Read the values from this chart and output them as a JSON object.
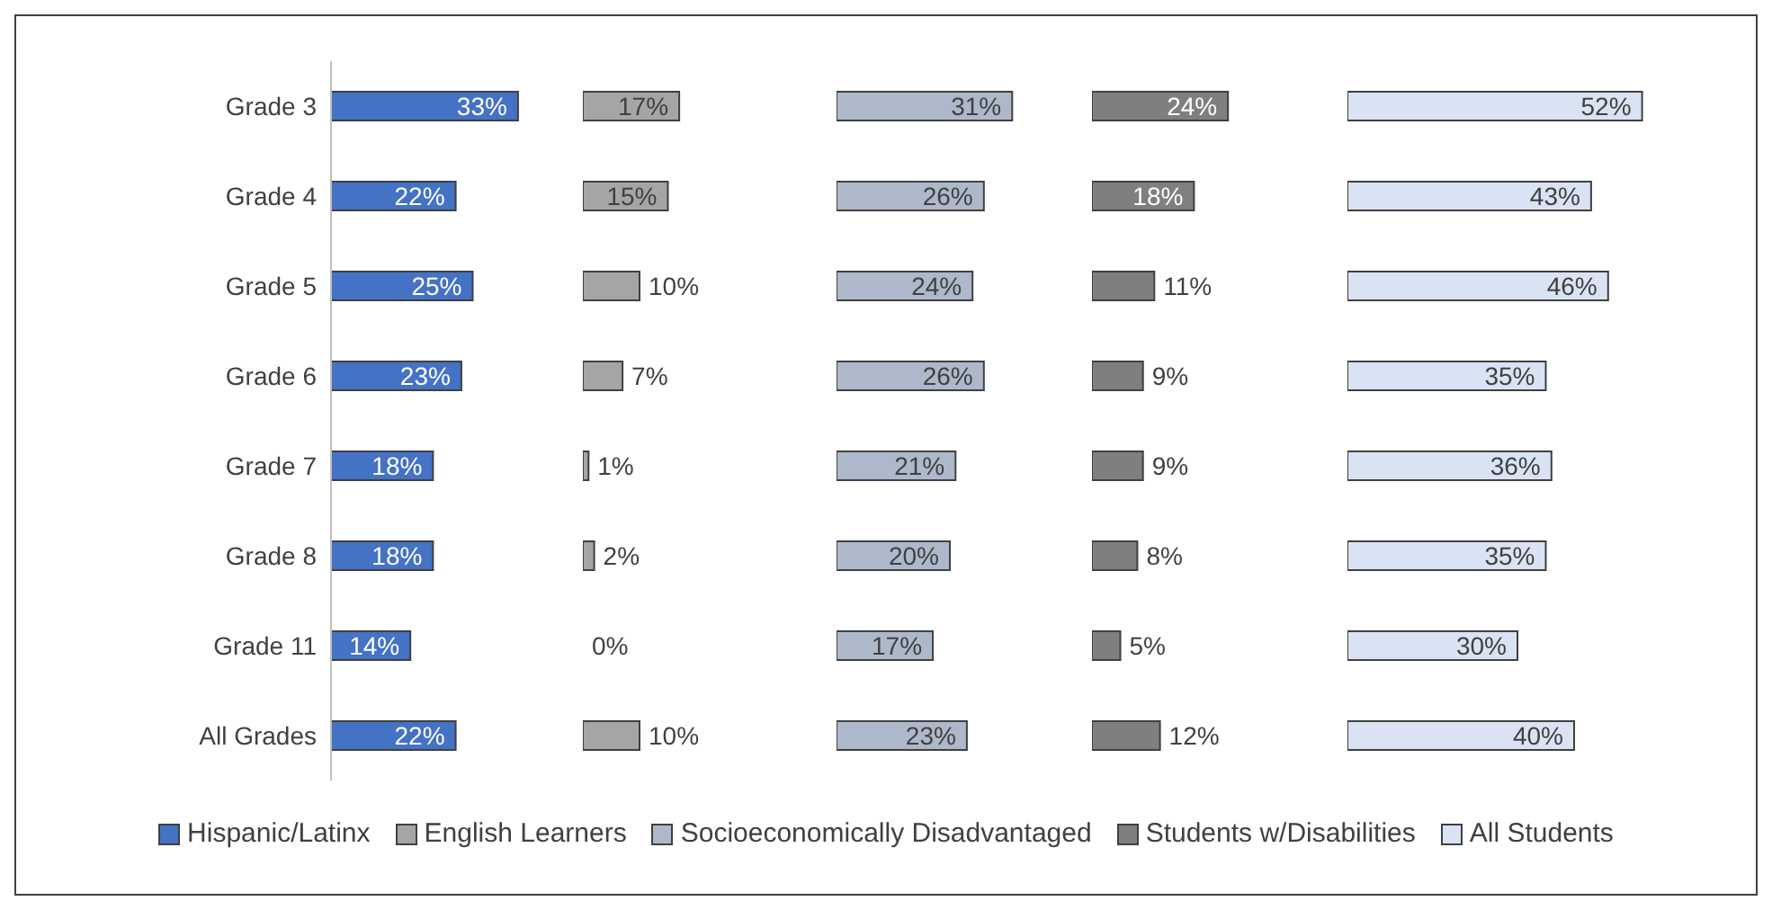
{
  "chart_data": [
    {
      "type": "bar",
      "orientation": "horizontal",
      "categories": [
        "Grade 3",
        "Grade 4",
        "Grade 5",
        "Grade 6",
        "Grade 7",
        "Grade 8",
        "Grade 11",
        "All Grades"
      ],
      "tick_labels": "y",
      "legend": "bottom",
      "series": [
        {
          "name": "Hispanic/Latinx",
          "color": "#4472c4",
          "values": [
            33,
            22,
            25,
            23,
            18,
            18,
            14,
            22
          ],
          "value_labels": [
            "33%",
            "22%",
            "25%",
            "23%",
            "18%",
            "18%",
            "14%",
            "22%"
          ]
        }
      ]
    },
    {
      "type": "bar",
      "orientation": "horizontal",
      "categories": [
        null,
        null,
        null,
        null,
        null,
        null,
        null,
        null
      ],
      "tick_labels": false,
      "legend": "bottom",
      "series": [
        {
          "name": "English Learners",
          "color": "#a5a5a5",
          "values": [
            17,
            15,
            10,
            7,
            1,
            2,
            0,
            10
          ],
          "value_labels": [
            "17%",
            "15%",
            "10%",
            "7%",
            "1%",
            "2%",
            "0%",
            "10%"
          ]
        }
      ]
    },
    {
      "type": "bar",
      "orientation": "horizontal",
      "categories": [
        null,
        null,
        null,
        null,
        null,
        null,
        null,
        null
      ],
      "tick_labels": false,
      "legend": "bottom",
      "series": [
        {
          "name": "Socioeconomically Disadvantaged",
          "color": "#adb9ca",
          "values": [
            31,
            26,
            24,
            26,
            21,
            20,
            17,
            23
          ],
          "value_labels": [
            "31%",
            "26%",
            "24%",
            "26%",
            "21%",
            "20%",
            "17%",
            "23%"
          ]
        }
      ]
    },
    {
      "type": "bar",
      "orientation": "horizontal",
      "categories": [
        null,
        null,
        null,
        null,
        null,
        null,
        null,
        null
      ],
      "tick_labels": false,
      "legend": "bottom",
      "series": [
        {
          "name": "Students w/Disabilities",
          "color": "#7f7f7f",
          "values": [
            24,
            18,
            11,
            9,
            9,
            8,
            5,
            12
          ],
          "value_labels": [
            "24%",
            "18%",
            "11%",
            "9%",
            "9%",
            "8%",
            "5%",
            "12%"
          ]
        }
      ]
    },
    {
      "type": "bar",
      "orientation": "horizontal",
      "categories": [
        null,
        null,
        null,
        null,
        null,
        null,
        null,
        null
      ],
      "tick_labels": false,
      "legend": "bottom",
      "series": [
        {
          "name": "All Students",
          "color": "#dae3f3",
          "values": [
            52,
            43,
            46,
            35,
            36,
            35,
            30,
            40
          ],
          "value_labels": [
            "52%",
            "43%",
            "46%",
            "35%",
            "36%",
            "35%",
            "30%",
            "40%"
          ]
        }
      ]
    }
  ]
}
